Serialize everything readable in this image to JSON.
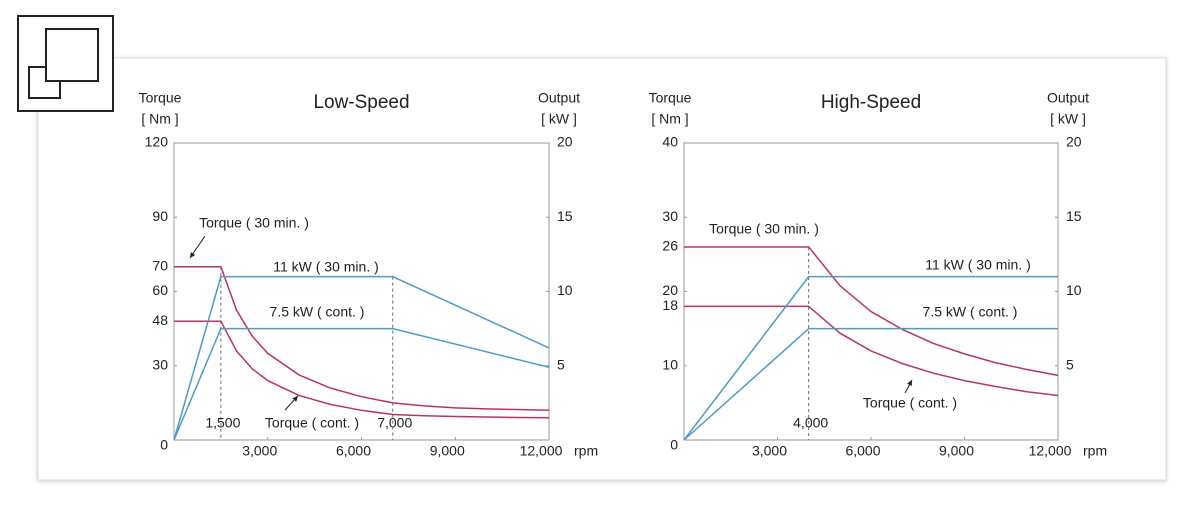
{
  "chart_data": [
    {
      "type": "line",
      "title": "Low-Speed",
      "y_label": [
        "Torque",
        "[ Nm ]"
      ],
      "y2_label": [
        "Output",
        "[ kW ]"
      ],
      "x_label": "rpm",
      "xlim": [
        0,
        12000
      ],
      "xticks": [
        {
          "value": 3000,
          "label": "3,000"
        },
        {
          "value": 6000,
          "label": "6,000"
        },
        {
          "value": 9000,
          "label": "9,000"
        },
        {
          "value": 12000,
          "label": "12,000"
        }
      ],
      "ylim": [
        0,
        120
      ],
      "yticks": [
        0,
        30,
        48,
        60,
        70,
        90,
        120
      ],
      "y2lim": [
        0,
        20
      ],
      "y2ticks": [
        5,
        10,
        15,
        20
      ],
      "grid": false,
      "x_markers": [
        {
          "value": 1500,
          "label": "1,500"
        },
        {
          "value": 7000,
          "label": "7,000"
        }
      ],
      "series": [
        {
          "name": "Torque ( 30 min. )",
          "color": "#b83560",
          "x": [
            0,
            1500,
            2000,
            2500,
            3000,
            4000,
            5000,
            6000,
            7000,
            8000,
            9000,
            10000,
            11000,
            12000
          ],
          "values": [
            70,
            70,
            52.5,
            42,
            35,
            26.3,
            21,
            17.5,
            15,
            13.8,
            13,
            12.6,
            12.3,
            12
          ]
        },
        {
          "name": "Torque ( cont. )",
          "color": "#b83560",
          "x": [
            0,
            1500,
            2000,
            2500,
            3000,
            4000,
            5000,
            6000,
            7000,
            8000,
            9000,
            10000,
            11000,
            12000
          ],
          "values": [
            48,
            48,
            36,
            28.8,
            24,
            18,
            14.4,
            12,
            10.3,
            9.8,
            9.5,
            9.3,
            9.1,
            9
          ]
        },
        {
          "name": "11 kW ( 30 min. )",
          "color": "#4d9cc6",
          "axis": "y2",
          "x": [
            0,
            1500,
            7000,
            12000
          ],
          "values": [
            0,
            11,
            11,
            6.2
          ]
        },
        {
          "name": "7.5 kW ( cont. )",
          "color": "#4d9cc6",
          "axis": "y2",
          "x": [
            0,
            1500,
            7000,
            12000
          ],
          "values": [
            0,
            7.5,
            7.5,
            4.9
          ]
        }
      ]
    },
    {
      "type": "line",
      "title": "High-Speed",
      "y_label": [
        "Torque",
        "[ Nm ]"
      ],
      "y2_label": [
        "Output",
        "[ kW ]"
      ],
      "x_label": "rpm",
      "xlim": [
        0,
        12000
      ],
      "xticks": [
        {
          "value": 3000,
          "label": "3,000"
        },
        {
          "value": 6000,
          "label": "6,000"
        },
        {
          "value": 9000,
          "label": "9,000"
        },
        {
          "value": 12000,
          "label": "12,000"
        }
      ],
      "ylim": [
        0,
        40
      ],
      "yticks": [
        0,
        10,
        18,
        20,
        26,
        30,
        40
      ],
      "y2lim": [
        0,
        20
      ],
      "y2ticks": [
        5,
        10,
        15,
        20
      ],
      "grid": false,
      "x_markers": [
        {
          "value": 4000,
          "label": "4,000"
        }
      ],
      "series": [
        {
          "name": "Torque ( 30 min. )",
          "color": "#b83560",
          "x": [
            0,
            4000,
            5000,
            6000,
            7000,
            8000,
            9000,
            10000,
            11000,
            12000
          ],
          "values": [
            26,
            26,
            20.8,
            17.3,
            14.9,
            13,
            11.6,
            10.4,
            9.5,
            8.7
          ]
        },
        {
          "name": "Torque ( cont. )",
          "color": "#b83560",
          "x": [
            0,
            4000,
            5000,
            6000,
            7000,
            8000,
            9000,
            10000,
            11000,
            12000
          ],
          "values": [
            18,
            18,
            14.4,
            12,
            10.3,
            9,
            8,
            7.2,
            6.5,
            6
          ]
        },
        {
          "name": "11 kW ( 30 min. )",
          "color": "#4d9cc6",
          "axis": "y2",
          "x": [
            0,
            4000,
            12000
          ],
          "values": [
            0,
            11,
            11
          ]
        },
        {
          "name": "7.5 kW ( cont. )",
          "color": "#4d9cc6",
          "axis": "y2",
          "x": [
            0,
            4000,
            12000
          ],
          "values": [
            0,
            7.5,
            7.5
          ]
        }
      ]
    }
  ]
}
